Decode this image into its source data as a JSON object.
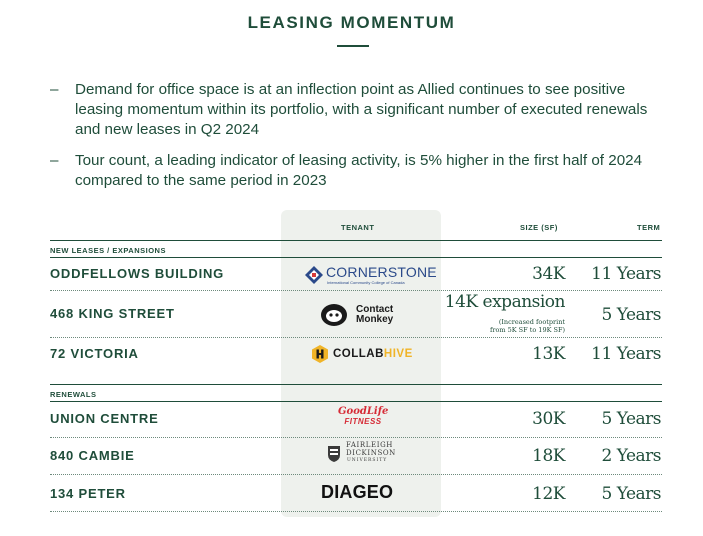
{
  "title": "LEASING MOMENTUM",
  "bullets": [
    {
      "dash": "–",
      "text": "Demand for office space is at an inflection point as Allied continues to see positive leasing momentum within its portfolio, with a significant number of executed renewals and new leases in Q2 2024"
    },
    {
      "dash": "–",
      "text": "Tour count, a leading indicator of leasing activity, is 5% higher in the first half of 2024 compared to the same period in 2023"
    }
  ],
  "table": {
    "headers": {
      "tenant": "TENANT",
      "size": "SIZE (SF)",
      "term": "TERM"
    },
    "sections": [
      {
        "label": "NEW LEASES / EXPANSIONS",
        "rows": [
          {
            "property": "ODDFELLOWS BUILDING",
            "tenant_logo": {
              "name": "CORNERSTONE",
              "sub": "International Community College of Canada"
            },
            "size": "34K",
            "term": "11 Years"
          },
          {
            "property": "468 KING STREET",
            "tenant_logo": {
              "name_line1": "Contact",
              "name_line2": "Monkey"
            },
            "size": "14K expansion",
            "note_line1": "(Increased footprint",
            "note_line2": "from 5K SF to 19K SF)",
            "term": "5 Years"
          },
          {
            "property": "72 VICTORIA",
            "tenant_logo": {
              "name_a": "COLLAB",
              "name_b": "HIVE"
            },
            "size": "13K",
            "term": "11 Years"
          }
        ]
      },
      {
        "label": "RENEWALS",
        "rows": [
          {
            "property": "UNION CENTRE",
            "tenant_logo": {
              "name_line1": "GoodLife",
              "name_line2": "FITNESS"
            },
            "size": "30K",
            "term": "5 Years"
          },
          {
            "property": "840 CAMBIE",
            "tenant_logo": {
              "name_line1": "FAIRLEIGH",
              "name_line2": "DICKINSON",
              "name_line3": "UNIVERSITY"
            },
            "size": "18K",
            "term": "2 Years"
          },
          {
            "property": "134 PETER",
            "tenant_logo": {
              "name": "DIAGEO"
            },
            "size": "12K",
            "term": "5 Years"
          }
        ]
      }
    ]
  },
  "colors": {
    "text": "#1f4d3a",
    "tenant_column_bg": "#eef1ed",
    "cornerstone_blue": "#2b4a8a",
    "collabhive_gold": "#f0b428",
    "goodlife_red": "#d62b36"
  },
  "icons": [
    "cornerstone-emblem-icon",
    "contactmonkey-monkey-icon",
    "collabhive-hex-icon",
    "fdu-crest-icon"
  ]
}
